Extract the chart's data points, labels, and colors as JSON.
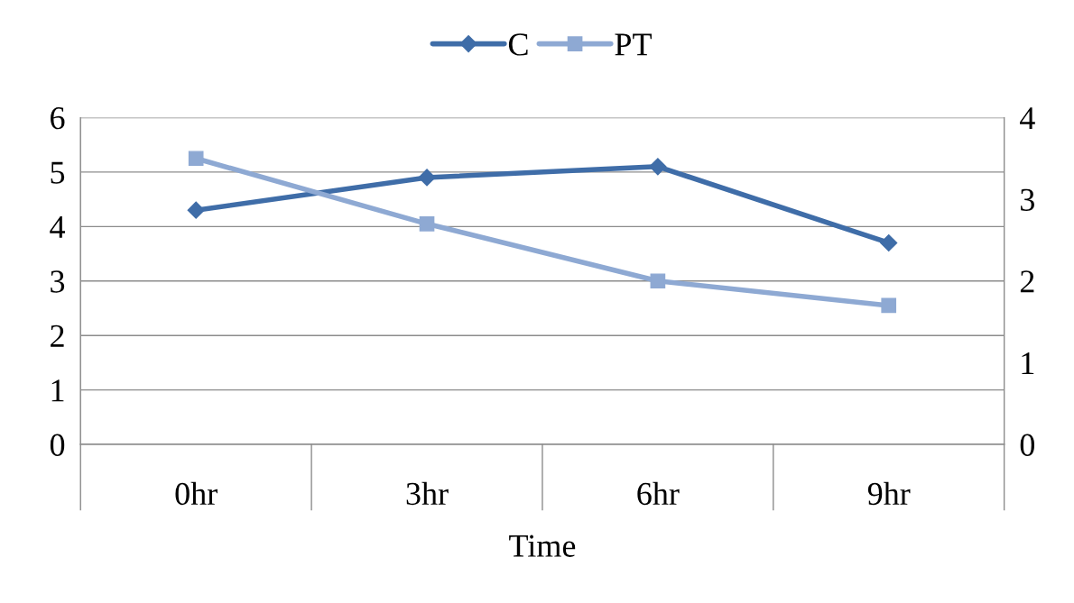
{
  "chart_data": {
    "type": "line",
    "xlabel": "Time",
    "categories": [
      "0hr",
      "3hr",
      "6hr",
      "9hr"
    ],
    "series": [
      {
        "name": "C",
        "color": "#3f6da8",
        "values": [
          4.3,
          4.9,
          5.1,
          3.7
        ],
        "marker": "diamond"
      },
      {
        "name": "PT",
        "color": "#8ea9d3",
        "values": [
          3.5,
          2.7,
          2.0,
          1.7
        ],
        "axis": "y2",
        "marker": "square"
      }
    ],
    "ylim": [
      0,
      6
    ],
    "yticks": [
      0,
      1,
      2,
      3,
      4,
      5,
      6
    ],
    "y2lim": [
      0,
      4
    ],
    "y2ticks": [
      0,
      1,
      2,
      3,
      4
    ],
    "grid": "y",
    "legend": "top",
    "line_style": "solid"
  }
}
